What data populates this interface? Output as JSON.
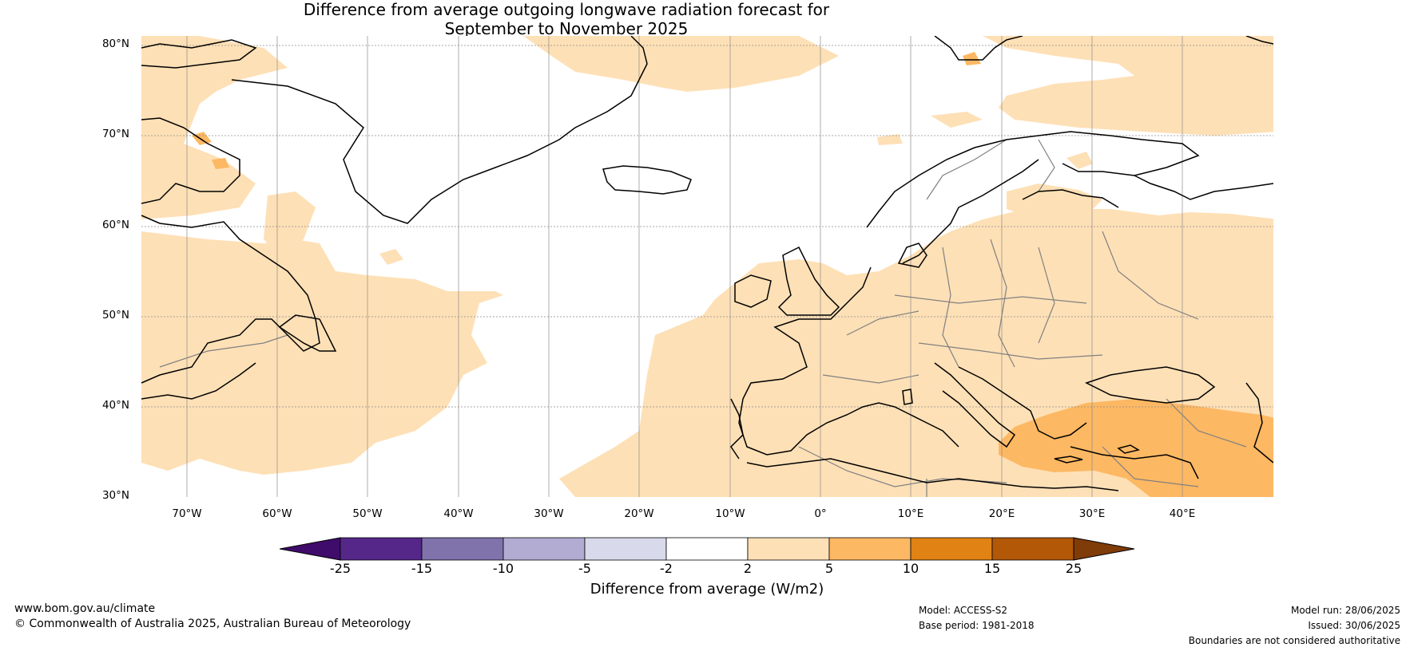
{
  "title": {
    "line1": "Difference from average outgoing longwave radiation forecast for",
    "line2": "September to November 2025"
  },
  "map": {
    "projection": "equirectangular",
    "lon_range": [
      -75,
      50
    ],
    "lat_range": [
      30,
      81
    ],
    "lat_labels": [
      "80°N",
      "70°N",
      "60°N",
      "50°N",
      "40°N",
      "30°N"
    ],
    "lon_labels": [
      "70°W",
      "60°W",
      "50°W",
      "40°W",
      "30°W",
      "20°W",
      "10°W",
      "0°",
      "10°E",
      "20°E",
      "30°E",
      "40°E"
    ],
    "ocean_color": "#ffffff",
    "coastline_color": "#000000",
    "border_color": "#808080"
  },
  "colorbar": {
    "ticks": [
      "-25",
      "-15",
      "-10",
      "-5",
      "-2",
      "2",
      "5",
      "10",
      "15",
      "25"
    ],
    "colors": [
      "#3f0c6b",
      "#542788",
      "#8073ac",
      "#b2abd2",
      "#d8daeb",
      "#ffffff",
      "#fee0b6",
      "#fdb863",
      "#e08214",
      "#b35806",
      "#7f3b08"
    ],
    "label": "Difference from average (W/m2)"
  },
  "footer": {
    "website": "www.bom.gov.au/climate",
    "copyright": "© Commonwealth of Australia 2025, Australian Bureau of Meteorology",
    "model": "Model: ACCESS-S2",
    "base_period": "Base period: 1981-2018",
    "model_run": "Model run: 28/06/2025",
    "issued": "Issued: 30/06/2025",
    "disclaimer": "Boundaries are not considered authoritative"
  }
}
